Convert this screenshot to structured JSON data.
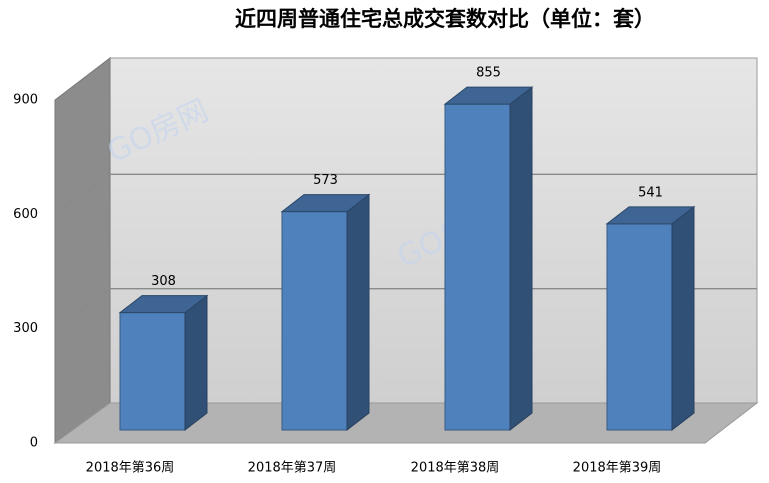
{
  "chart_data": {
    "type": "bar",
    "title": "近四周普通住宅总成交套数对比（单位：套）",
    "categories": [
      "2018年第36周",
      "2018年第37周",
      "2018年第38周",
      "2018年第39周"
    ],
    "values": [
      308,
      573,
      855,
      541
    ],
    "color": "#4f81bd",
    "ylim": [
      0,
      900
    ],
    "yticks": [
      0,
      300,
      600,
      900
    ],
    "grid": true,
    "watermark": "GO房网"
  }
}
